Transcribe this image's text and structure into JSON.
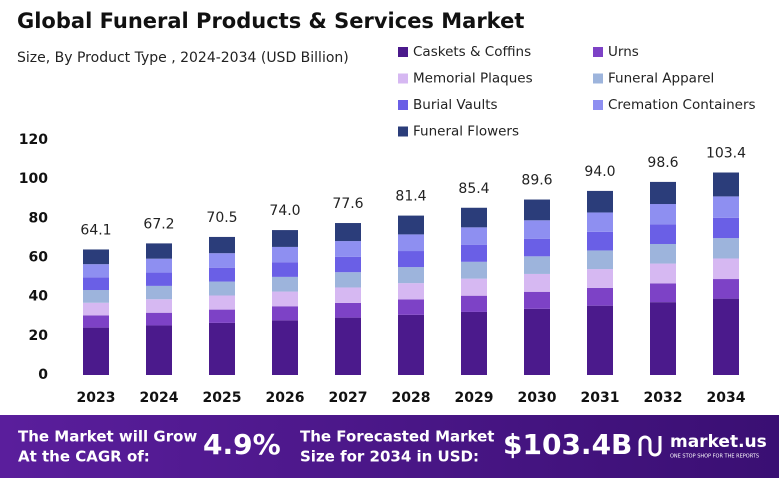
{
  "chart_data": {
    "type": "stacked_bar",
    "title": "Global Funeral Products & Services Market",
    "subtitle": "Size, By Product Type , 2024-2034 (USD Billion)",
    "categories": [
      "2023",
      "2024",
      "2025",
      "2026",
      "2027",
      "2028",
      "2029",
      "2030",
      "2031",
      "2032",
      "2034"
    ],
    "series": [
      {
        "name": "Caskets & Coffins",
        "color": "#4b1a8c",
        "values": [
          24.2,
          25.3,
          26.6,
          27.9,
          29.3,
          30.7,
          32.2,
          33.8,
          35.4,
          37.2,
          39.0
        ]
      },
      {
        "name": "Urns",
        "color": "#7d42c6",
        "values": [
          6.2,
          6.5,
          6.8,
          7.2,
          7.5,
          7.9,
          8.3,
          8.7,
          9.1,
          9.6,
          10.0
        ]
      },
      {
        "name": "Memorial Plaques",
        "color": "#d6b8f2",
        "values": [
          6.5,
          6.9,
          7.2,
          7.5,
          7.9,
          8.3,
          8.7,
          9.1,
          9.6,
          10.1,
          10.5
        ]
      },
      {
        "name": "Funeral Apparel",
        "color": "#9db4dc",
        "values": [
          6.5,
          6.8,
          7.1,
          7.5,
          7.8,
          8.2,
          8.6,
          9.0,
          9.5,
          10.0,
          10.4
        ]
      },
      {
        "name": "Burial Vaults",
        "color": "#6a5fe6",
        "values": [
          6.5,
          6.8,
          7.1,
          7.5,
          7.8,
          8.2,
          8.6,
          9.0,
          9.5,
          10.0,
          10.4
        ]
      },
      {
        "name": "Cremation Containers",
        "color": "#8e8ff1",
        "values": [
          6.7,
          7.1,
          7.4,
          7.8,
          8.1,
          8.5,
          9.0,
          9.4,
          9.9,
          10.4,
          10.9
        ]
      },
      {
        "name": "Funeral Flowers",
        "color": "#2b3d7a",
        "values": [
          7.5,
          7.8,
          8.3,
          8.6,
          9.2,
          9.6,
          10.0,
          10.6,
          11.0,
          11.3,
          12.2
        ]
      }
    ],
    "totals": {
      "values": [
        64.1,
        67.2,
        70.5,
        74.0,
        77.6,
        81.4,
        85.4,
        89.6,
        94.0,
        98.6,
        103.4
      ],
      "value_labels": [
        "64.1",
        "67.2",
        "70.5",
        "74.0",
        "77.6",
        "81.4",
        "85.4",
        "89.6",
        "94.0",
        "98.6",
        "103.4"
      ]
    },
    "ylim": [
      0,
      120
    ],
    "yticks": [
      0,
      20,
      40,
      60,
      80,
      100,
      120
    ],
    "grid": false
  },
  "footer": {
    "cagr_text": [
      "The Market will Grow",
      "At the CAGR of:"
    ],
    "cagr": "4.9%",
    "forecast_text": [
      "The Forecasted Market",
      "Size for 2034 in USD:"
    ],
    "forecast": "$103.4B",
    "brand": "market.us",
    "tagline": "ONE STOP SHOP FOR THE REPORTS"
  }
}
